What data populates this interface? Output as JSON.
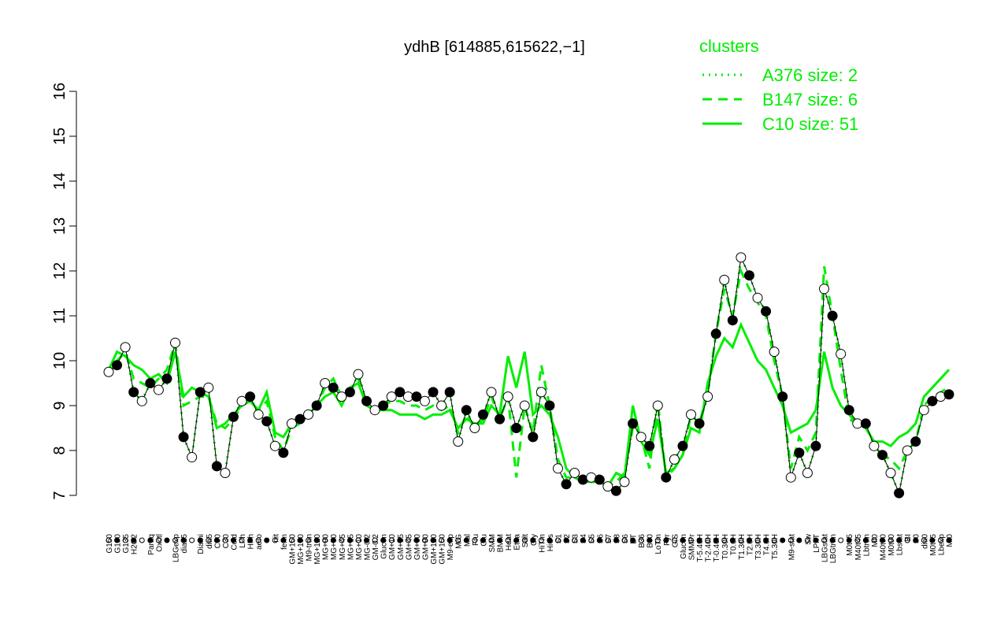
{
  "chart_data": {
    "type": "line",
    "title": "ydhB [614885,615622,−1]",
    "legend_title": "clusters",
    "legend_color": "#00ee00",
    "categories": [
      "G150",
      "G180",
      "G135",
      "H2O2",
      null,
      "Paraq",
      "Oxctl",
      null,
      "LBGexp",
      "dia15",
      null,
      "Diami",
      "dia5",
      "C90",
      "C30",
      "Cold",
      "LPh",
      "HPh",
      "aero",
      null,
      "nit",
      "ferm",
      "GM+150",
      "MG+150",
      "M9-tran",
      "MG+120",
      "MG+90",
      "MG+60",
      "MG+45",
      "MG+15",
      "MG+10",
      "MG-0.2",
      "GM-0.2",
      "Glucon",
      "GM+10",
      "GM+15",
      "GM+45",
      "GM+60",
      "GM+90",
      "GM+120",
      "GM+150",
      "M9-exp",
      "M/G",
      "Mal",
      "Fru",
      "Glu",
      "SMM",
      "BMM",
      "Heat",
      "Etha",
      "Salt",
      "Gly",
      "HiTm",
      "HiOs",
      "S1",
      "S2",
      "S3",
      "S4",
      "S5",
      "S6",
      "S7",
      "S8",
      "S6",
      "BT",
      "B36",
      "B60",
      "LoTm",
      "Pyr",
      "G/S",
      "Glucon",
      "SMMPr",
      "T-5.40H",
      "T-2.40H",
      "T-0.40H",
      "T0.30H",
      "T0.0H",
      "T1.30H",
      "T2.0H",
      "T3.30H",
      "T4.0H",
      "T5.30H",
      null,
      "M9-stat",
      null,
      "Sw",
      "LPhT",
      "LBGstat",
      "LBGtran",
      null,
      "M0t45",
      "M40t45",
      "Lbtran",
      "Mt0",
      "M40t90",
      "M0t90",
      "Lbstat",
      "BI",
      "S0",
      "dia0",
      "M0t45",
      "Lbexp",
      "Mt0"
    ],
    "values": [
      9.75,
      9.9,
      10.3,
      9.3,
      9.1,
      9.5,
      9.35,
      9.6,
      10.4,
      8.3,
      7.85,
      9.3,
      9.4,
      7.65,
      7.5,
      8.75,
      9.1,
      9.2,
      8.8,
      8.65,
      8.1,
      7.95,
      8.6,
      8.7,
      8.8,
      9.0,
      9.5,
      9.4,
      9.2,
      9.3,
      9.7,
      9.1,
      8.9,
      9.0,
      9.2,
      9.3,
      9.2,
      9.2,
      9.1,
      9.3,
      9.0,
      9.3,
      8.2,
      8.9,
      8.5,
      8.8,
      9.3,
      8.7,
      9.2,
      8.5,
      9.0,
      8.3,
      9.3,
      9.0,
      7.6,
      7.25,
      7.5,
      7.35,
      7.4,
      7.35,
      7.2,
      7.1,
      7.3,
      8.6,
      8.3,
      8.1,
      9.0,
      7.4,
      7.8,
      8.1,
      8.8,
      8.6,
      9.2,
      10.6,
      11.8,
      10.9,
      12.3,
      11.9,
      11.4,
      11.1,
      10.2,
      9.2,
      7.4,
      7.95,
      7.5,
      8.1,
      11.6,
      11.0,
      10.15,
      8.9,
      8.6,
      8.6,
      8.1,
      7.9,
      7.5,
      7.05,
      8.0,
      8.2,
      8.9,
      9.1,
      9.2,
      9.25
    ],
    "point_color": "#000000",
    "series": [
      {
        "name": "A376 size: 2",
        "color": "#00ee00",
        "dash": "dotted",
        "values": [
          9.75,
          9.9,
          10.3,
          9.3,
          9.1,
          9.5,
          9.35,
          9.6,
          10.4,
          8.3,
          7.85,
          9.3,
          9.4,
          7.65,
          7.5,
          8.75,
          9.1,
          9.2,
          8.8,
          8.65,
          8.1,
          7.95,
          8.6,
          8.7,
          8.8,
          9.0,
          9.5,
          9.4,
          9.2,
          9.3,
          9.7,
          9.1,
          8.9,
          9.0,
          9.2,
          9.3,
          9.2,
          9.2,
          9.1,
          9.3,
          9.0,
          9.3,
          8.2,
          8.9,
          8.5,
          8.8,
          9.3,
          8.7,
          9.2,
          8.5,
          9.0,
          8.3,
          9.3,
          9.0,
          7.6,
          7.25,
          7.5,
          7.35,
          7.4,
          7.35,
          7.2,
          7.1,
          7.3,
          8.6,
          8.3,
          8.1,
          9.0,
          7.4,
          7.8,
          8.1,
          8.8,
          8.6,
          9.2,
          10.6,
          11.8,
          10.9,
          12.3,
          11.9,
          11.4,
          11.1,
          10.2,
          9.2,
          7.4,
          7.95,
          7.5,
          8.1,
          11.6,
          11.0,
          10.15,
          8.9,
          8.6,
          8.6,
          8.1,
          7.9,
          7.5,
          7.05,
          8.0,
          8.2,
          8.9,
          9.1,
          9.2,
          9.25
        ]
      },
      {
        "name": "B147 size: 6",
        "color": "#00ee00",
        "dash": "dashed",
        "values": [
          9.7,
          10.0,
          10.2,
          9.6,
          9.5,
          9.4,
          9.6,
          9.8,
          10.4,
          9.0,
          9.1,
          9.2,
          9.2,
          8.6,
          8.5,
          8.7,
          9.0,
          9.1,
          8.9,
          9.1,
          8.3,
          8.0,
          8.5,
          8.6,
          8.8,
          9.0,
          9.4,
          9.6,
          9.2,
          9.3,
          9.6,
          9.0,
          8.9,
          9.0,
          9.1,
          9.1,
          9.0,
          9.0,
          8.9,
          9.0,
          8.9,
          9.0,
          8.4,
          8.8,
          8.5,
          8.7,
          9.2,
          8.7,
          9.2,
          7.4,
          9.0,
          8.4,
          9.9,
          9.0,
          7.8,
          7.4,
          7.4,
          7.3,
          7.4,
          7.3,
          7.2,
          7.3,
          7.5,
          8.5,
          8.3,
          7.6,
          9.1,
          7.4,
          7.6,
          7.9,
          8.8,
          8.6,
          9.3,
          10.6,
          11.6,
          11.0,
          12.0,
          11.6,
          11.3,
          11.0,
          10.0,
          9.2,
          7.6,
          8.3,
          8.0,
          8.4,
          12.1,
          11.0,
          9.8,
          8.7,
          8.6,
          8.5,
          8.2,
          7.9,
          7.8,
          7.6,
          8.0,
          8.2,
          9.0,
          9.2,
          9.3,
          9.4
        ]
      },
      {
        "name": "C10 size: 51",
        "color": "#00ee00",
        "dash": "solid",
        "values": [
          9.8,
          10.2,
          10.1,
          9.9,
          9.8,
          9.6,
          9.7,
          9.5,
          10.2,
          9.2,
          9.4,
          9.3,
          9.2,
          8.5,
          8.6,
          8.8,
          9.0,
          9.1,
          8.9,
          9.3,
          8.4,
          8.3,
          8.6,
          8.7,
          8.8,
          9.0,
          9.2,
          9.3,
          9.0,
          9.4,
          9.5,
          9.0,
          8.9,
          8.9,
          8.9,
          8.8,
          8.8,
          8.8,
          8.7,
          8.8,
          8.8,
          8.9,
          8.5,
          8.7,
          8.6,
          8.6,
          9.0,
          8.8,
          10.1,
          9.4,
          10.2,
          8.8,
          9.0,
          8.8,
          8.3,
          7.6,
          7.4,
          7.3,
          7.3,
          7.3,
          7.2,
          7.5,
          7.4,
          9.0,
          8.2,
          7.9,
          8.7,
          7.5,
          7.6,
          7.9,
          8.5,
          8.4,
          9.5,
          10.1,
          10.5,
          10.3,
          10.8,
          10.4,
          10.0,
          9.8,
          9.4,
          9.0,
          8.4,
          8.5,
          8.6,
          8.9,
          10.2,
          9.4,
          9.0,
          8.8,
          8.6,
          8.5,
          8.2,
          8.2,
          8.1,
          8.3,
          8.4,
          8.6,
          9.2,
          9.4,
          9.6,
          9.8
        ]
      }
    ],
    "ylim": [
      7,
      16
    ],
    "yticks": [
      7,
      8,
      9,
      10,
      11,
      12,
      13,
      14,
      15,
      16
    ]
  }
}
